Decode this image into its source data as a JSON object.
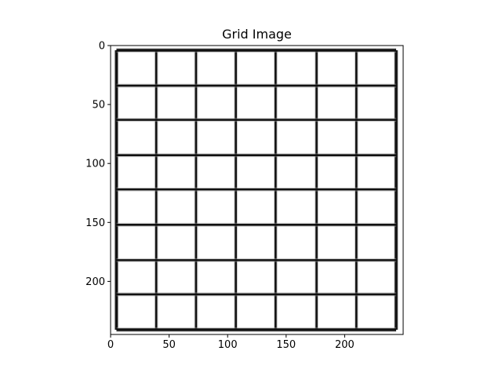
{
  "chart_data": {
    "type": "heatmap",
    "title": "Grid Image",
    "xlabel": "",
    "ylabel": "",
    "xlim": [
      0,
      250
    ],
    "ylim": [
      245,
      0
    ],
    "x_ticks": [
      0,
      50,
      100,
      150,
      200
    ],
    "y_ticks": [
      0,
      50,
      100,
      150,
      200
    ],
    "x_tick_labels": [
      "0",
      "50",
      "100",
      "150",
      "200"
    ],
    "y_tick_labels": [
      "0",
      "50",
      "100",
      "150",
      "200"
    ],
    "grid": false,
    "colormap": "gray",
    "image_content": {
      "description_type": "grid-lines",
      "columns": 7,
      "rows": 8,
      "vertical_lines_x": [
        5,
        39,
        73,
        107,
        141,
        176,
        210,
        244
      ],
      "horizontal_lines_y": [
        4,
        34,
        63,
        93,
        122,
        152,
        182,
        211,
        241
      ],
      "line_color": "#111111",
      "background": "#ffffff"
    }
  }
}
